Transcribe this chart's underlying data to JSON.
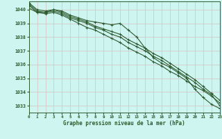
{
  "xlabel": "Graphe pression niveau de la mer (hPa)",
  "background_color": "#cff5f0",
  "grid_color": "#d4c8c8",
  "line_color": "#2d5a2d",
  "xmin": 0,
  "xmax": 23,
  "ymin": 1032.5,
  "ymax": 1040.6,
  "yticks": [
    1033,
    1034,
    1035,
    1036,
    1037,
    1038,
    1039,
    1040
  ],
  "xticks": [
    0,
    1,
    2,
    3,
    4,
    5,
    6,
    7,
    8,
    9,
    10,
    11,
    12,
    13,
    14,
    15,
    16,
    17,
    18,
    19,
    20,
    21,
    22,
    23
  ],
  "series": [
    [
      1040.1,
      1039.8,
      1039.8,
      1040.0,
      1039.9,
      1039.6,
      1039.4,
      1039.2,
      1039.1,
      1039.0,
      1038.9,
      1039.0,
      1038.5,
      1038.0,
      1037.2,
      1036.5,
      1036.1,
      1035.8,
      1035.4,
      1035.0,
      1034.2,
      1033.6,
      1033.1,
      1032.8
    ],
    [
      1040.3,
      1039.8,
      1039.7,
      1039.8,
      1039.6,
      1039.3,
      1039.0,
      1038.7,
      1038.5,
      1038.2,
      1037.9,
      1037.6,
      1037.2,
      1036.9,
      1036.6,
      1036.2,
      1035.9,
      1035.5,
      1035.2,
      1034.8,
      1034.4,
      1034.1,
      1033.7,
      1033.2
    ],
    [
      1040.4,
      1039.9,
      1039.8,
      1039.9,
      1039.7,
      1039.4,
      1039.2,
      1039.0,
      1038.7,
      1038.5,
      1038.2,
      1038.0,
      1037.6,
      1037.3,
      1037.0,
      1036.6,
      1036.3,
      1035.9,
      1035.5,
      1035.1,
      1034.7,
      1034.2,
      1033.8,
      1033.0
    ],
    [
      1040.5,
      1040.0,
      1039.9,
      1040.0,
      1039.8,
      1039.5,
      1039.3,
      1039.1,
      1038.8,
      1038.6,
      1038.4,
      1038.2,
      1037.8,
      1037.5,
      1037.2,
      1036.8,
      1036.5,
      1036.1,
      1035.7,
      1035.3,
      1034.9,
      1034.4,
      1033.9,
      1033.4
    ]
  ]
}
